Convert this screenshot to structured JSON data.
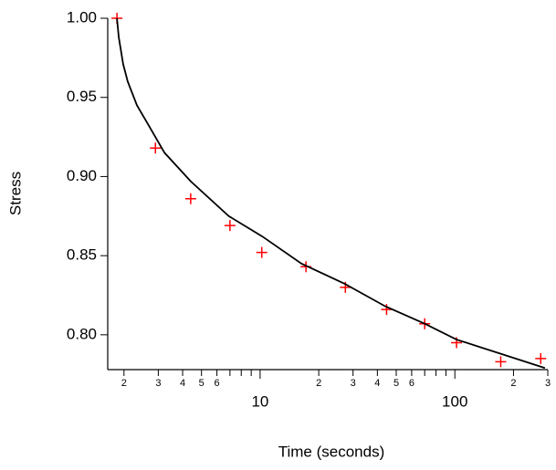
{
  "chart_data": {
    "type": "scatter",
    "xlabel": "Time (seconds)",
    "ylabel": "Stress",
    "xscale": "log",
    "xlim": [
      1.65,
      300
    ],
    "ylim": [
      0.778,
      1.0
    ],
    "xticks": [
      2,
      3,
      4,
      5,
      6,
      10,
      {
        "value": 20,
        "label": "2"
      },
      {
        "value": 30,
        "label": "3"
      },
      {
        "value": 40,
        "label": "4"
      },
      {
        "value": 50,
        "label": "5"
      },
      {
        "value": 60,
        "label": "6"
      },
      100,
      {
        "value": 200,
        "label": "2"
      },
      {
        "value": 300,
        "label": "3"
      }
    ],
    "xticks_minor": [
      7,
      8,
      9,
      70,
      80,
      90
    ],
    "yticks": [
      {
        "value": 0.8,
        "label": "0.80"
      },
      {
        "value": 0.85,
        "label": "0.85"
      },
      {
        "value": 0.9,
        "label": "0.90"
      },
      {
        "value": 0.95,
        "label": "0.95"
      },
      {
        "value": 1.0,
        "label": "1.00"
      }
    ],
    "series": [
      {
        "color": "#ff0000",
        "marker": "plus",
        "x": [
          1.84,
          2.9,
          4.4,
          7.0,
          10.2,
          17.2,
          27.4,
          44.6,
          70,
          102,
          172,
          276
        ],
        "values": [
          1.0,
          0.918,
          0.886,
          0.869,
          0.852,
          0.843,
          0.83,
          0.816,
          0.807,
          0.795,
          0.783,
          0.785
        ]
      },
      {
        "color": "#000000",
        "marker": "line",
        "x": [
          1.84,
          1.88,
          1.98,
          2.09,
          2.33,
          2.6,
          3.23,
          4.4,
          6.9,
          10.3,
          16.3,
          27.4,
          43.9,
          70,
          102,
          172,
          290
        ],
        "values": [
          1.0,
          0.988,
          0.971,
          0.96,
          0.945,
          0.935,
          0.915,
          0.897,
          0.875,
          0.862,
          0.845,
          0.832,
          0.818,
          0.807,
          0.797,
          0.788,
          0.779
        ]
      }
    ]
  }
}
